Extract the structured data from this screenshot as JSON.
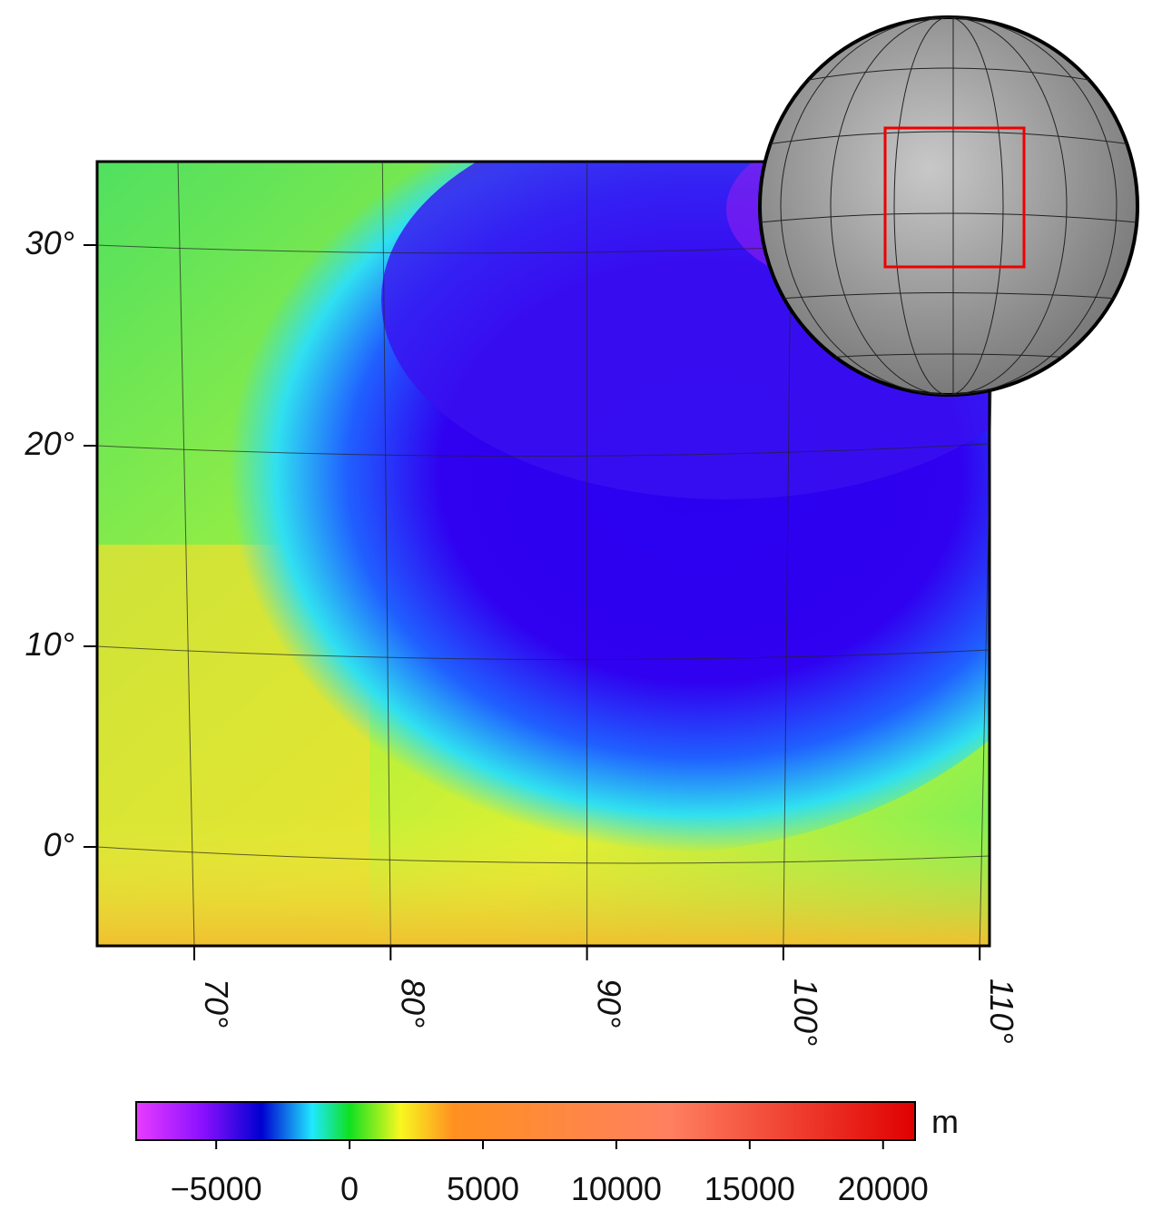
{
  "map": {
    "lat_ticks": [
      {
        "value": 30,
        "label": "30°"
      },
      {
        "value": 20,
        "label": "20°"
      },
      {
        "value": 10,
        "label": "10°"
      },
      {
        "value": 0,
        "label": "0°"
      }
    ],
    "lon_ticks": [
      {
        "value": 70,
        "label": "70°"
      },
      {
        "value": 80,
        "label": "80°"
      },
      {
        "value": 90,
        "label": "90°"
      },
      {
        "value": 100,
        "label": "100°"
      },
      {
        "value": 110,
        "label": "110°"
      }
    ],
    "colorbar": {
      "unit": "m",
      "lim": [
        -8000,
        21200
      ],
      "ticks": [
        {
          "value": -5000,
          "label": "−5000"
        },
        0,
        5000,
        10000,
        15000,
        20000
      ],
      "stops": [
        {
          "value": -8000,
          "color": "#e83cff"
        },
        {
          "value": -5500,
          "color": "#8a10ff"
        },
        {
          "value": -3300,
          "color": "#0000d0"
        },
        {
          "value": -1400,
          "color": "#20e8ff"
        },
        {
          "value": 0,
          "color": "#10e020"
        },
        {
          "value": 1900,
          "color": "#f8f820"
        },
        {
          "value": 3900,
          "color": "#ff9020"
        },
        {
          "value": 12000,
          "color": "#ff8060"
        },
        {
          "value": 21200,
          "color": "#e00000"
        }
      ]
    }
  }
}
